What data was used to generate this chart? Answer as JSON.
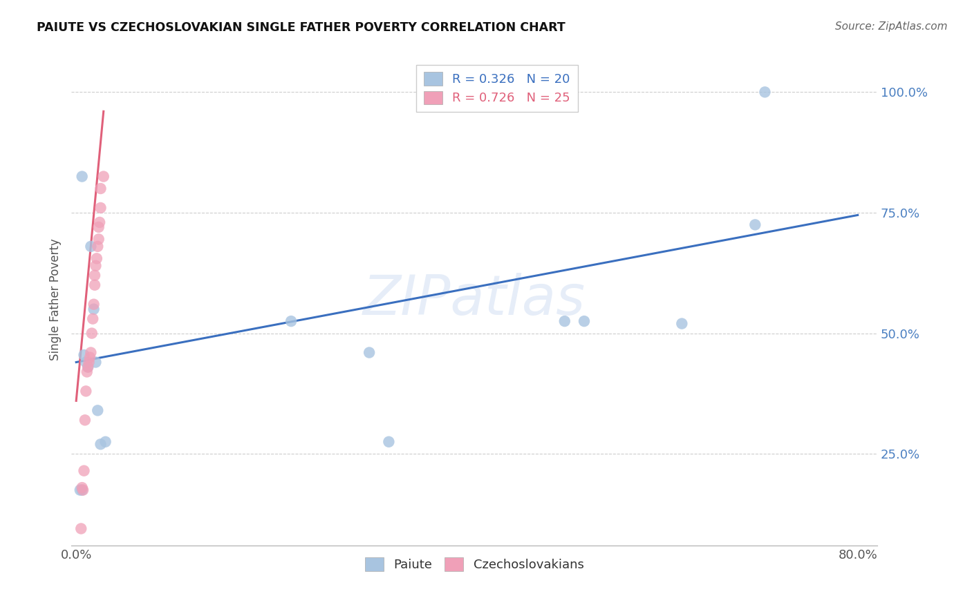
{
  "title": "PAIUTE VS CZECHOSLOVAKIAN SINGLE FATHER POVERTY CORRELATION CHART",
  "source": "Source: ZipAtlas.com",
  "ylabel": "Single Father Poverty",
  "xlim": [
    -0.005,
    0.82
  ],
  "ylim": [
    0.06,
    1.08
  ],
  "xticks": [
    0.0,
    0.2,
    0.4,
    0.6,
    0.8
  ],
  "xtick_labels": [
    "0.0%",
    "",
    "",
    "",
    "80.0%"
  ],
  "yticks": [
    0.25,
    0.5,
    0.75,
    1.0
  ],
  "ytick_labels": [
    "25.0%",
    "50.0%",
    "75.0%",
    "100.0%"
  ],
  "legend1_label": "R = 0.326   N = 20",
  "legend2_label": "R = 0.726   N = 25",
  "legend_bottom1": "Paiute",
  "legend_bottom2": "Czechoslovakians",
  "blue_color": "#a8c4e0",
  "pink_color": "#f0a0b8",
  "blue_line_color": "#3a6fbf",
  "pink_line_color": "#e0607a",
  "watermark": "ZIPatlas",
  "blue_x": [
    0.004,
    0.006,
    0.006,
    0.008,
    0.01,
    0.012,
    0.015,
    0.018,
    0.02,
    0.022,
    0.025,
    0.03,
    0.22,
    0.3,
    0.32,
    0.5,
    0.52,
    0.62,
    0.695,
    0.705
  ],
  "blue_y": [
    0.175,
    0.175,
    0.825,
    0.455,
    0.44,
    0.43,
    0.68,
    0.55,
    0.44,
    0.34,
    0.27,
    0.275,
    0.525,
    0.46,
    0.275,
    0.525,
    0.525,
    0.52,
    0.725,
    1.0
  ],
  "pink_x": [
    0.005,
    0.006,
    0.007,
    0.008,
    0.009,
    0.01,
    0.011,
    0.012,
    0.013,
    0.014,
    0.015,
    0.016,
    0.017,
    0.018,
    0.019,
    0.019,
    0.02,
    0.021,
    0.022,
    0.023,
    0.023,
    0.024,
    0.025,
    0.025,
    0.028
  ],
  "pink_y": [
    0.095,
    0.18,
    0.175,
    0.215,
    0.32,
    0.38,
    0.42,
    0.43,
    0.44,
    0.45,
    0.46,
    0.5,
    0.53,
    0.56,
    0.6,
    0.62,
    0.64,
    0.655,
    0.68,
    0.695,
    0.72,
    0.73,
    0.76,
    0.8,
    0.825
  ],
  "blue_line_x": [
    0.0,
    0.8
  ],
  "blue_line_y": [
    0.44,
    0.745
  ],
  "pink_line_x": [
    0.0,
    0.028
  ],
  "pink_line_y": [
    0.36,
    0.96
  ]
}
